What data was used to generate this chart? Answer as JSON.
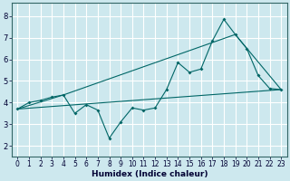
{
  "xlabel": "Humidex (Indice chaleur)",
  "ylabel": "",
  "bg_color": "#cde8ee",
  "grid_color": "#ffffff",
  "line_color": "#006666",
  "xlim": [
    -0.5,
    23.5
  ],
  "ylim": [
    1.5,
    8.6
  ],
  "xticks": [
    0,
    1,
    2,
    3,
    4,
    5,
    6,
    7,
    8,
    9,
    10,
    11,
    12,
    13,
    14,
    15,
    16,
    17,
    18,
    19,
    20,
    21,
    22,
    23
  ],
  "yticks": [
    2,
    3,
    4,
    5,
    6,
    7,
    8
  ],
  "line1_x": [
    0,
    1,
    2,
    3,
    4,
    5,
    6,
    7,
    8,
    9,
    10,
    11,
    12,
    13,
    14,
    15,
    16,
    17,
    18,
    19,
    20,
    21,
    22,
    23
  ],
  "line1_y": [
    3.7,
    4.0,
    4.1,
    4.25,
    4.35,
    3.5,
    3.9,
    3.65,
    2.35,
    3.1,
    3.75,
    3.65,
    3.75,
    4.6,
    5.85,
    5.4,
    5.55,
    6.85,
    7.85,
    7.15,
    6.5,
    5.25,
    4.65,
    4.6
  ],
  "line2_x": [
    0,
    23
  ],
  "line2_y": [
    3.7,
    4.6
  ],
  "line3_x": [
    0,
    4,
    19,
    23
  ],
  "line3_y": [
    3.7,
    4.35,
    7.15,
    4.6
  ]
}
